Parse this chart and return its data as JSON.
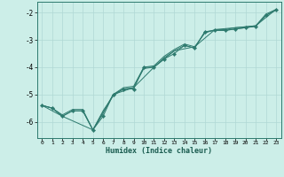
{
  "xlabel": "Humidex (Indice chaleur)",
  "bg_color": "#cceee8",
  "grid_color": "#b0d8d4",
  "line_color": "#2d7a6e",
  "xlim": [
    -0.5,
    23.5
  ],
  "ylim": [
    -6.6,
    -1.6
  ],
  "yticks": [
    -6,
    -5,
    -4,
    -3,
    -2
  ],
  "xticks": [
    0,
    1,
    2,
    3,
    4,
    5,
    6,
    7,
    8,
    9,
    10,
    11,
    12,
    13,
    14,
    15,
    16,
    17,
    18,
    19,
    20,
    21,
    22,
    23
  ],
  "series1": [
    [
      0,
      -5.4
    ],
    [
      1,
      -5.5
    ],
    [
      2,
      -5.8
    ],
    [
      3,
      -5.6
    ],
    [
      4,
      -5.6
    ],
    [
      5,
      -6.3
    ],
    [
      6,
      -5.7
    ],
    [
      7,
      -5.0
    ],
    [
      8,
      -4.75
    ],
    [
      9,
      -4.7
    ],
    [
      10,
      -4.0
    ],
    [
      11,
      -3.95
    ],
    [
      12,
      -3.6
    ],
    [
      13,
      -3.35
    ],
    [
      14,
      -3.15
    ],
    [
      15,
      -3.25
    ],
    [
      16,
      -2.75
    ],
    [
      17,
      -2.62
    ],
    [
      18,
      -2.62
    ],
    [
      19,
      -2.55
    ],
    [
      20,
      -2.52
    ],
    [
      21,
      -2.48
    ],
    [
      22,
      -2.05
    ],
    [
      23,
      -1.88
    ]
  ],
  "series2": [
    [
      0,
      -5.4
    ],
    [
      1,
      -5.5
    ],
    [
      2,
      -5.75
    ],
    [
      3,
      -5.55
    ],
    [
      4,
      -5.55
    ],
    [
      5,
      -6.3
    ],
    [
      6,
      -5.6
    ],
    [
      7,
      -5.05
    ],
    [
      8,
      -4.8
    ],
    [
      9,
      -4.75
    ],
    [
      10,
      -4.05
    ],
    [
      11,
      -4.0
    ],
    [
      12,
      -3.65
    ],
    [
      13,
      -3.4
    ],
    [
      14,
      -3.2
    ],
    [
      15,
      -3.3
    ],
    [
      16,
      -2.7
    ],
    [
      17,
      -2.65
    ],
    [
      18,
      -2.65
    ],
    [
      19,
      -2.6
    ],
    [
      20,
      -2.55
    ],
    [
      21,
      -2.5
    ],
    [
      22,
      -2.1
    ],
    [
      23,
      -1.9
    ]
  ],
  "series3": [
    [
      0,
      -5.4
    ],
    [
      1,
      -5.5
    ],
    [
      2,
      -5.8
    ],
    [
      3,
      -5.6
    ],
    [
      4,
      -5.6
    ],
    [
      5,
      -6.3
    ],
    [
      6,
      -5.8
    ],
    [
      7,
      -5.0
    ],
    [
      8,
      -4.8
    ],
    [
      9,
      -4.8
    ],
    [
      10,
      -4.0
    ],
    [
      11,
      -4.0
    ],
    [
      12,
      -3.7
    ],
    [
      13,
      -3.5
    ],
    [
      14,
      -3.2
    ],
    [
      15,
      -3.3
    ],
    [
      16,
      -2.7
    ],
    [
      17,
      -2.65
    ],
    [
      18,
      -2.65
    ],
    [
      19,
      -2.6
    ],
    [
      20,
      -2.55
    ],
    [
      21,
      -2.5
    ],
    [
      22,
      -2.1
    ],
    [
      23,
      -1.9
    ]
  ],
  "series4": [
    [
      0,
      -5.4
    ],
    [
      2,
      -5.8
    ],
    [
      5,
      -6.3
    ],
    [
      7,
      -5.0
    ],
    [
      9,
      -4.75
    ],
    [
      11,
      -4.0
    ],
    [
      13,
      -3.4
    ],
    [
      15,
      -3.25
    ],
    [
      17,
      -2.62
    ],
    [
      19,
      -2.55
    ],
    [
      21,
      -2.48
    ],
    [
      23,
      -1.88
    ]
  ]
}
